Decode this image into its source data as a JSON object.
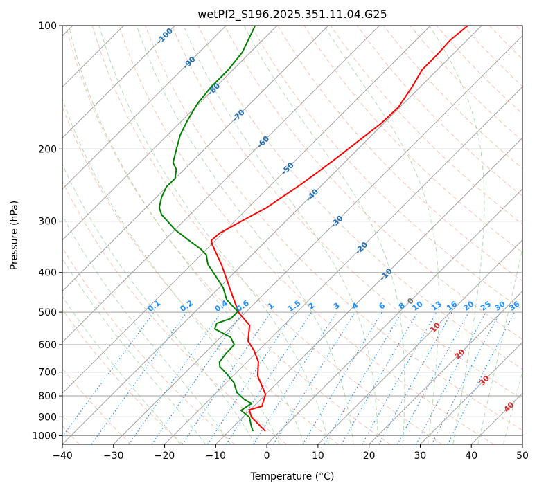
{
  "chart_data": {
    "type": "line",
    "subtype": "skew-t log-p",
    "title": "wetPf2_S196.2025.351.11.04.G25",
    "xlabel": "Temperature (°C)",
    "ylabel": "Pressure (hPa)",
    "xlim": [
      -40,
      50
    ],
    "ylim": [
      1050,
      100
    ],
    "x_ticks": [
      -40,
      -30,
      -20,
      -10,
      0,
      10,
      20,
      30,
      40,
      50
    ],
    "y_ticks": [
      100,
      200,
      300,
      400,
      500,
      600,
      700,
      800,
      900,
      1000
    ],
    "grid": true,
    "isotherm_labels": [
      -100,
      -90,
      -80,
      -70,
      -60,
      -50,
      -40,
      -30,
      -20,
      -10,
      0,
      10,
      20,
      30,
      40
    ],
    "mixing_ratio_labels": [
      "0.1",
      "0.2",
      "0.4",
      "0.6",
      "1",
      "1.5",
      "2",
      "3",
      "4",
      "6",
      "8",
      "10",
      "13",
      "16",
      "20",
      "25",
      "30",
      "36"
    ],
    "colors": {
      "temperature": "#ff0000",
      "dewpoint": "#008000",
      "isotherm": "#a0a0a0",
      "dry_adiabat": "#f7a58c",
      "moist_adiabat": "#9fd39f",
      "mixing_ratio": "#1e90ff",
      "label_cold": "#1f6fb4",
      "label_zero": "#707070",
      "label_warm": "#d62728"
    },
    "series": [
      {
        "name": "Temperature",
        "pressure": [
          975,
          902,
          865,
          848,
          825,
          794,
          755,
          715,
          661,
          621,
          588,
          538,
          502,
          461,
          384,
          342,
          334,
          321,
          297,
          278,
          260,
          245,
          227,
          208,
          190,
          173,
          158,
          141,
          128,
          118,
          108.5,
          100
        ],
        "values": [
          -2.9,
          -8.3,
          -10.2,
          -8.4,
          -9.1,
          -10.0,
          -12.5,
          -15.2,
          -17.8,
          -20.8,
          -23.9,
          -26.7,
          -31.2,
          -35.3,
          -43.9,
          -49.8,
          -50.8,
          -50.6,
          -48.4,
          -46.4,
          -45.3,
          -44.3,
          -43.3,
          -42.3,
          -41.4,
          -40.5,
          -40.3,
          -41.6,
          -43.0,
          -43.0,
          -43.3,
          -42.7
        ]
      },
      {
        "name": "Dewpoint",
        "pressure": [
          975,
          946,
          902,
          868,
          835,
          816,
          785,
          743,
          706,
          679,
          661,
          629,
          600,
          575,
          549,
          532,
          518,
          498,
          466,
          435,
          405,
          382,
          362,
          351,
          334,
          315,
          289,
          278,
          262,
          247,
          236,
          224,
          216,
          200,
          185,
          171,
          155,
          141,
          128,
          116,
          100
        ],
        "values": [
          -5.3,
          -6.7,
          -8.7,
          -11.7,
          -11.0,
          -13.2,
          -16.0,
          -18.5,
          -21.7,
          -24.4,
          -25.4,
          -25.8,
          -25.9,
          -28.1,
          -32.8,
          -33.5,
          -31.7,
          -31.7,
          -36.2,
          -39.3,
          -43.4,
          -46.8,
          -49.0,
          -51.1,
          -55.2,
          -59.9,
          -65.6,
          -67.4,
          -69.0,
          -70.1,
          -70.0,
          -71.6,
          -73.5,
          -75.5,
          -77.5,
          -78.9,
          -80.3,
          -80.9,
          -80.9,
          -81.6,
          -84.3
        ]
      }
    ]
  }
}
